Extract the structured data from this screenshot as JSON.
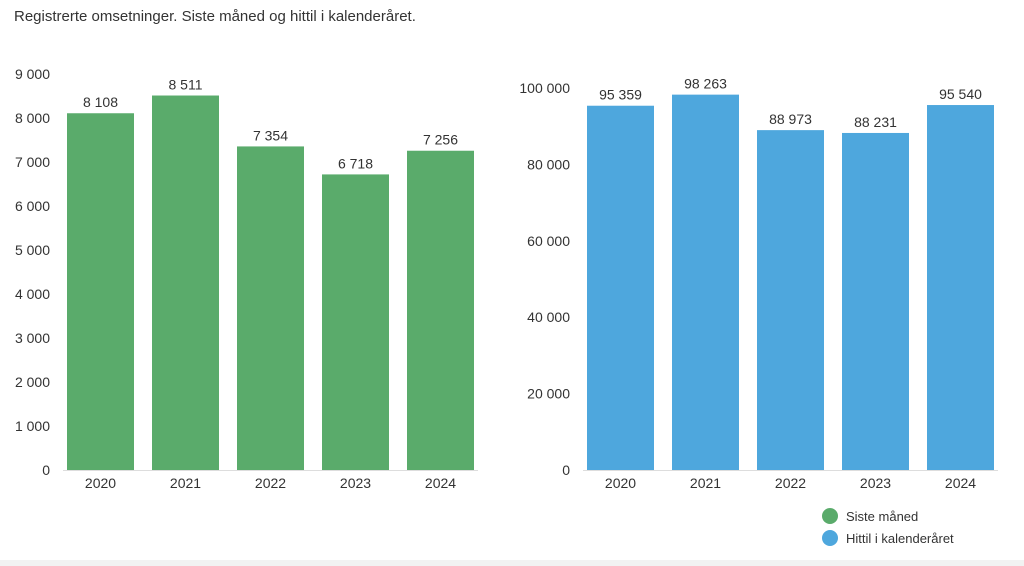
{
  "title": "Registrerte omsetninger. Siste måned og hittil i kalenderåret.",
  "legend": [
    {
      "label": "Siste måned",
      "color": "#5aab6b"
    },
    {
      "label": "Hittil i kalenderåret",
      "color": "#4ea7dd"
    }
  ],
  "chart_data": [
    {
      "type": "bar",
      "categories": [
        "2020",
        "2021",
        "2022",
        "2023",
        "2024"
      ],
      "values": [
        8108,
        8511,
        7354,
        6718,
        7256
      ],
      "value_labels": [
        "8 108",
        "8 511",
        "7 354",
        "6 718",
        "7 256"
      ],
      "series_name": "Siste måned",
      "color": "#5aab6b",
      "ylim": [
        0,
        9000
      ],
      "yticks": [
        0,
        1000,
        2000,
        3000,
        4000,
        5000,
        6000,
        7000,
        8000,
        9000
      ],
      "ytick_labels": [
        "0",
        "1 000",
        "2 000",
        "3 000",
        "4 000",
        "5 000",
        "6 000",
        "7 000",
        "8 000",
        "9 000"
      ],
      "grid": false
    },
    {
      "type": "bar",
      "categories": [
        "2020",
        "2021",
        "2022",
        "2023",
        "2024"
      ],
      "values": [
        95359,
        98263,
        88973,
        88231,
        95540
      ],
      "value_labels": [
        "95 359",
        "98 263",
        "88 973",
        "88 231",
        "95 540"
      ],
      "series_name": "Hittil i kalenderåret",
      "color": "#4ea7dd",
      "ylim": [
        0,
        100000
      ],
      "yticks": [
        0,
        20000,
        40000,
        60000,
        80000,
        100000
      ],
      "ytick_labels": [
        "0",
        "20 000",
        "40 000",
        "60 000",
        "80 000",
        "100 000"
      ],
      "grid": false
    }
  ]
}
